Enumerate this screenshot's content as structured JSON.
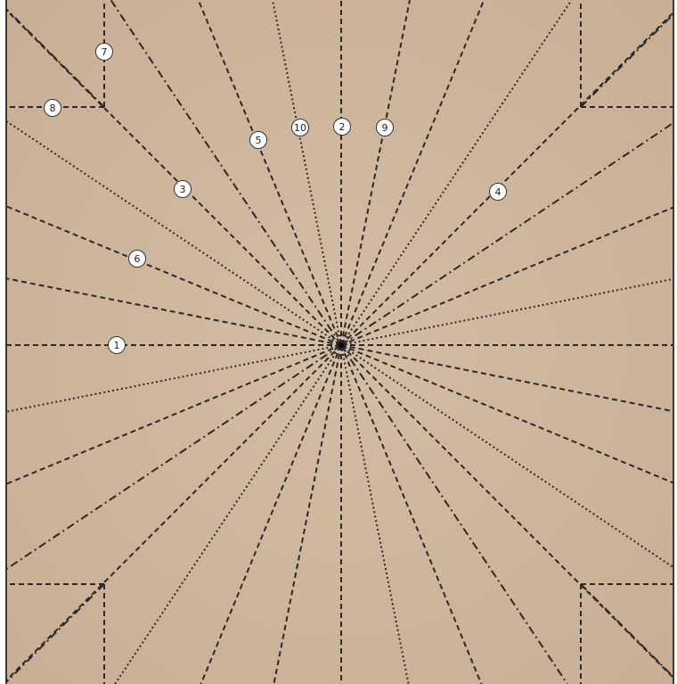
{
  "colors": {
    "paper": "#c8ae94",
    "paper_center": "#d4bda5",
    "border": "#3a3a3a",
    "crease": "#2a2a2a",
    "marker_fill": "#ffffff",
    "marker_stroke": "#333333"
  },
  "line_styles": {
    "valley": "dashed",
    "mountain": "dash-dot",
    "construction": "dotted"
  },
  "labels": {
    "m1": "1",
    "m2": "2",
    "m3": "3",
    "m4": "4",
    "m5": "5",
    "m6": "6",
    "m7": "7",
    "m8": "8",
    "m9": "9",
    "m10": "10"
  }
}
